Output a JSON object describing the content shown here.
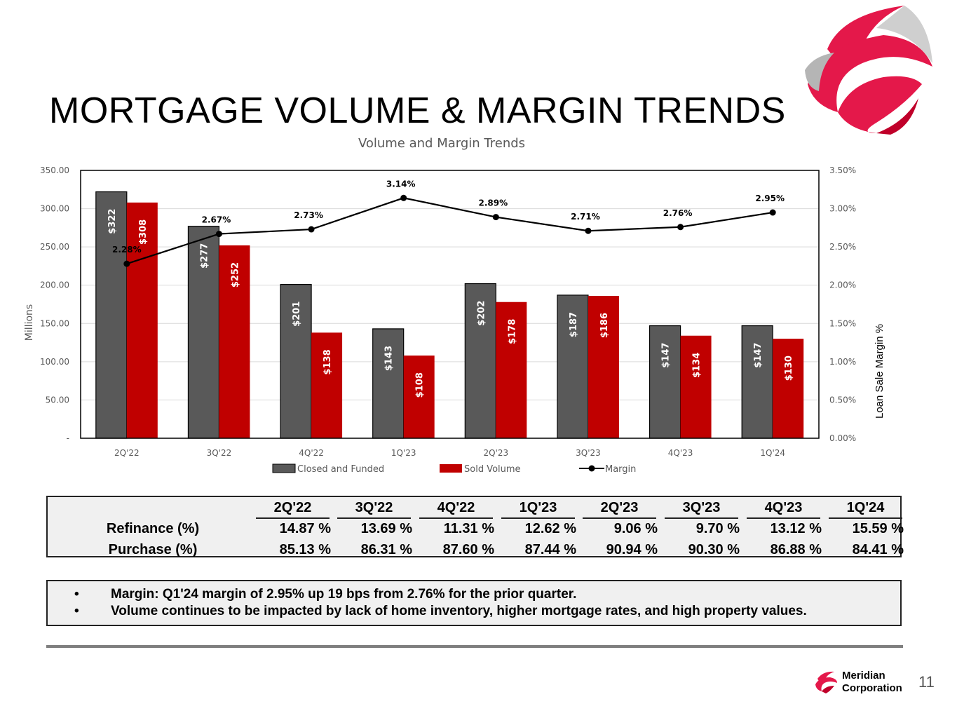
{
  "slide": {
    "title": "MORTGAGE VOLUME & MARGIN TRENDS",
    "page_number": "11"
  },
  "brand": {
    "name_line1": "Meridian",
    "name_line2": "Corporation",
    "accent": "#e4184a",
    "accent_dark": "#c0002a"
  },
  "chart_data": {
    "type": "bar",
    "title": "Volume and Margin Trends",
    "ylabel": "Millions",
    "y2label": "Loan Sale Margin %",
    "categories": [
      "2Q'22",
      "3Q'22",
      "4Q'22",
      "1Q'23",
      "2Q'23",
      "3Q'23",
      "4Q'23",
      "1Q'24"
    ],
    "ylim": [
      0,
      350
    ],
    "y_ticks": [
      "-",
      "50.00",
      "100.00",
      "150.00",
      "200.00",
      "250.00",
      "300.00",
      "350.00"
    ],
    "y2lim": [
      0,
      3.5
    ],
    "y2_ticks": [
      "0.00%",
      "0.50%",
      "1.00%",
      "1.50%",
      "2.00%",
      "2.50%",
      "3.00%",
      "3.50%"
    ],
    "series": [
      {
        "name": "Closed and Funded",
        "color": "#595959",
        "values": [
          322,
          277,
          201,
          143,
          202,
          187,
          147,
          147
        ],
        "labels": [
          "$322",
          "$277",
          "$201",
          "$143",
          "$202",
          "$187",
          "$147",
          "$147"
        ]
      },
      {
        "name": "Sold Volume",
        "color": "#c00000",
        "values": [
          308,
          252,
          138,
          108,
          178,
          186,
          134,
          130
        ],
        "labels": [
          "$308",
          "$252",
          "$138",
          "$108",
          "$178",
          "$186",
          "$134",
          "$130"
        ]
      },
      {
        "name": "Margin",
        "color": "#000000",
        "type": "line",
        "axis": "right",
        "values": [
          2.28,
          2.67,
          2.73,
          3.14,
          2.89,
          2.71,
          2.76,
          2.95
        ],
        "labels": [
          "2.28%",
          "2.67%",
          "2.73%",
          "3.14%",
          "2.89%",
          "2.71%",
          "2.76%",
          "2.95%"
        ]
      }
    ]
  },
  "mix_table": {
    "quarters": [
      "2Q'22",
      "3Q'22",
      "4Q'22",
      "1Q'23",
      "2Q'23",
      "3Q'23",
      "4Q'23",
      "1Q'24"
    ],
    "rows": [
      {
        "label": "Refinance (%)",
        "values": [
          "14.87 %",
          "13.69 %",
          "11.31 %",
          "12.62 %",
          "9.06 %",
          "9.70 %",
          "13.12 %",
          "15.59 %"
        ]
      },
      {
        "label": "Purchase (%)",
        "values": [
          "85.13 %",
          "86.31 %",
          "87.60 %",
          "87.44 %",
          "90.94 %",
          "90.30 %",
          "86.88 %",
          "84.41 %"
        ]
      }
    ]
  },
  "notes": {
    "bullet": "•",
    "items": [
      "Margin: Q1'24 margin of 2.95% up 19 bps from 2.76% for the prior quarter.",
      "Volume continues to be impacted by lack of home inventory, higher mortgage rates, and high property values."
    ]
  }
}
